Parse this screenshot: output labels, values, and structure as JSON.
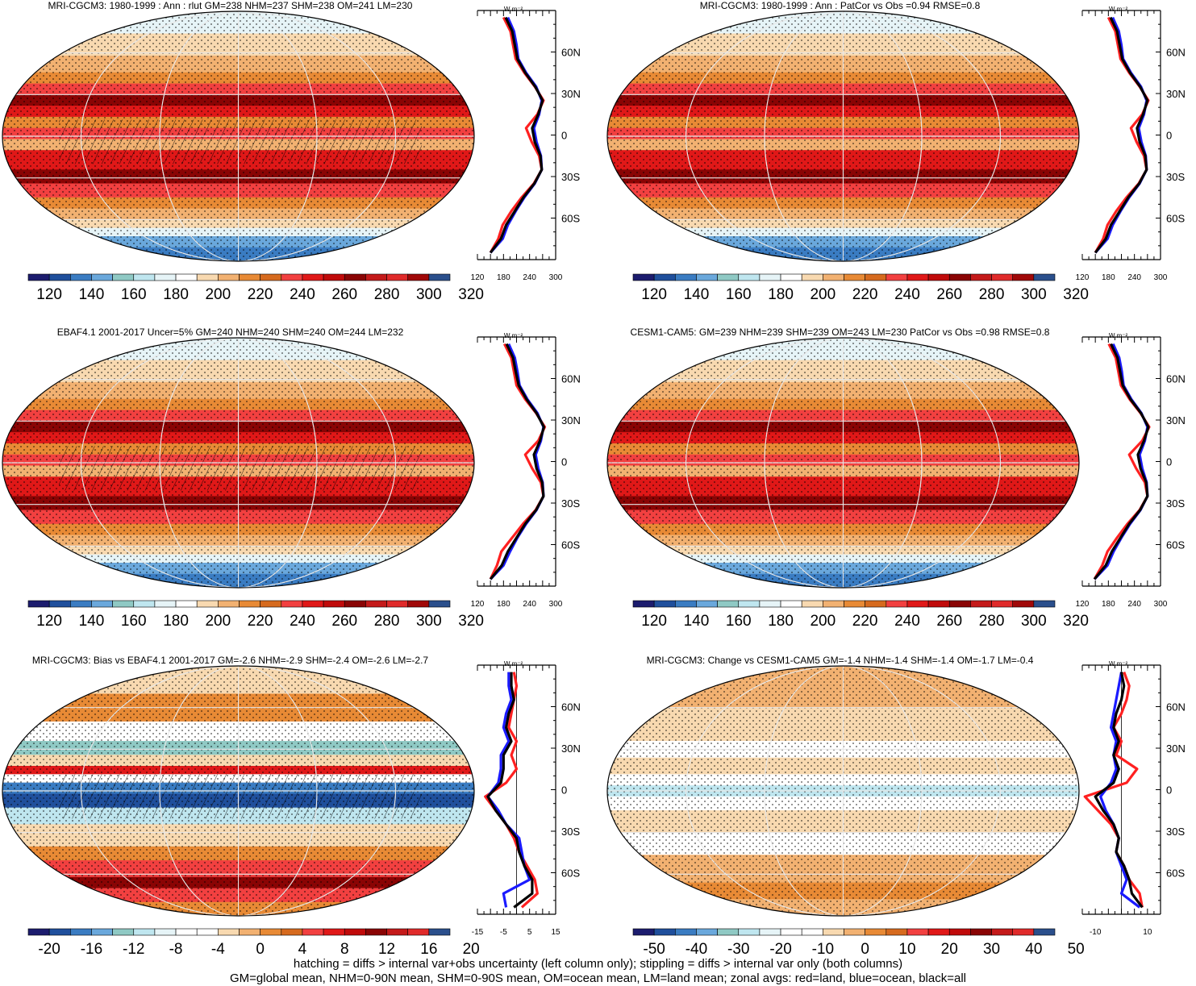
{
  "panels": [
    {
      "title": "MRI-CGCM3: 1980-1999 : Ann : rlut GM=238 NHM=237 SHM=238 OM=241 LM=230",
      "colorbar_labels": [
        "120",
        "140",
        "160",
        "180",
        "200",
        "220",
        "240",
        "260",
        "280",
        "300",
        "320"
      ],
      "profile_xlabels": [
        "120",
        "180",
        "240",
        "300"
      ],
      "lat_labels": [
        "60N",
        "30N",
        "0",
        "30S",
        "60S"
      ],
      "unit": "W m⁻²",
      "kind": "abs"
    },
    {
      "title": "MRI-CGCM3: 1980-1999 : Ann : PatCor vs Obs =0.94 RMSE=0.8",
      "colorbar_labels": [
        "120",
        "140",
        "160",
        "180",
        "200",
        "220",
        "240",
        "260",
        "280",
        "300",
        "320"
      ],
      "profile_xlabels": [
        "120",
        "180",
        "240",
        "300"
      ],
      "lat_labels": [
        "60N",
        "30N",
        "0",
        "30S",
        "60S"
      ],
      "unit": "W m⁻²",
      "kind": "abs"
    },
    {
      "title": "EBAF4.1 2001-2017 Uncer=5% GM=240 NHM=240 SHM=240 OM=244 LM=232",
      "colorbar_labels": [
        "120",
        "140",
        "160",
        "180",
        "200",
        "220",
        "240",
        "260",
        "280",
        "300",
        "320"
      ],
      "profile_xlabels": [
        "120",
        "180",
        "240",
        "300"
      ],
      "lat_labels": [
        "60N",
        "30N",
        "0",
        "30S",
        "60S"
      ],
      "unit": "W m⁻²",
      "kind": "abs"
    },
    {
      "title": "CESM1-CAM5: GM=239 NHM=239 SHM=239 OM=243 LM=230 PatCor vs Obs =0.98 RMSE=0.8",
      "colorbar_labels": [
        "120",
        "140",
        "160",
        "180",
        "200",
        "220",
        "240",
        "260",
        "280",
        "300",
        "320"
      ],
      "profile_xlabels": [
        "120",
        "180",
        "240",
        "300"
      ],
      "lat_labels": [
        "60N",
        "30N",
        "0",
        "30S",
        "60S"
      ],
      "unit": "W m⁻²",
      "kind": "abs"
    },
    {
      "title": "MRI-CGCM3: Bias vs EBAF4.1 2001-2017 GM=-2.6 NHM=-2.9 SHM=-2.4 OM=-2.6 LM=-2.7",
      "colorbar_labels": [
        "-20",
        "-16",
        "-12",
        "-8",
        "-4",
        "0",
        "4",
        "8",
        "12",
        "16",
        "20"
      ],
      "profile_xlabels": [
        "-15",
        "-5",
        "5",
        "15"
      ],
      "lat_labels": [
        "60N",
        "30N",
        "0",
        "30S",
        "60S"
      ],
      "unit": "W m⁻²",
      "kind": "bias"
    },
    {
      "title": "MRI-CGCM3: Change vs CESM1-CAM5 GM=-1.4 NHM=-1.4 SHM=-1.4 OM=-1.7 LM=-0.4",
      "colorbar_labels": [
        "-50",
        "-40",
        "-30",
        "-20",
        "-10",
        "0",
        "10",
        "20",
        "30",
        "40",
        "50"
      ],
      "profile_xlabels": [
        "-10",
        "10"
      ],
      "lat_labels": [
        "60N",
        "30N",
        "0",
        "30S",
        "60S"
      ],
      "unit": "W m⁻²",
      "kind": "change"
    }
  ],
  "footer": {
    "line1": "hatching = diffs > internal var+obs uncertainty (left column only); stippling = diffs > internal var only (both columns)",
    "line2": "GM=global mean, NHM=0-90N mean, SHM=0-90S mean, OM=ocean mean, LM=land mean; zonal avgs: red=land, blue=ocean, black=all"
  },
  "palette": [
    "#1c1c6e",
    "#1f4f9c",
    "#3a7cc2",
    "#6aa8dc",
    "#8fc9c4",
    "#bfe6ef",
    "#e6f4f7",
    "#ffffff",
    "#f8d9b0",
    "#f2b171",
    "#e88a35",
    "#d66a1e",
    "#f24040",
    "#e01818",
    "#c00a0a",
    "#8a0404",
    "#c41a1a",
    "#e02a2a",
    "#a00808",
    "#2a4f8c"
  ],
  "profile_colors": {
    "land": "#ff2020",
    "ocean": "#1a1aff",
    "all": "#000000"
  },
  "chart_data": [
    {
      "type": "line",
      "title": "MRI-CGCM3: 1980-1999 : Ann : rlut GM=238 NHM=237 SHM=238 OM=241 LM=230",
      "xlabel": "W m⁻²",
      "xlim": [
        120,
        300
      ],
      "ylim": [
        -90,
        90
      ],
      "y": [
        -85,
        -75,
        -65,
        -55,
        -45,
        -35,
        -25,
        -15,
        -5,
        5,
        15,
        25,
        35,
        45,
        55,
        65,
        75,
        85
      ],
      "series": [
        {
          "name": "red=land",
          "values": [
            150,
            168,
            178,
            198,
            222,
            250,
            268,
            262,
            245,
            232,
            258,
            272,
            252,
            228,
            208,
            202,
            196,
            180
          ]
        },
        {
          "name": "blue=ocean",
          "values": [
            150,
            178,
            190,
            208,
            228,
            252,
            268,
            266,
            256,
            250,
            262,
            268,
            255,
            232,
            214,
            210,
            204,
            190
          ]
        },
        {
          "name": "black=all",
          "values": [
            150,
            174,
            186,
            206,
            226,
            251,
            268,
            265,
            252,
            246,
            260,
            270,
            253,
            230,
            212,
            206,
            200,
            185
          ]
        }
      ]
    },
    {
      "type": "line",
      "title": "MRI-CGCM3: 1980-1999 : Ann : PatCor vs Obs =0.94 RMSE=0.8",
      "xlabel": "W m⁻²",
      "xlim": [
        120,
        300
      ],
      "ylim": [
        -90,
        90
      ],
      "y": [
        -85,
        -75,
        -65,
        -55,
        -45,
        -35,
        -25,
        -15,
        -5,
        5,
        15,
        25,
        35,
        45,
        55,
        65,
        75,
        85
      ],
      "series": [
        {
          "name": "red=land",
          "values": [
            150,
            168,
            178,
            198,
            222,
            250,
            268,
            262,
            245,
            232,
            258,
            272,
            252,
            228,
            208,
            202,
            196,
            180
          ]
        },
        {
          "name": "blue=ocean",
          "values": [
            150,
            178,
            190,
            208,
            228,
            252,
            268,
            266,
            256,
            250,
            262,
            268,
            255,
            232,
            214,
            210,
            204,
            190
          ]
        },
        {
          "name": "black=all",
          "values": [
            150,
            174,
            186,
            206,
            226,
            251,
            268,
            265,
            252,
            246,
            260,
            270,
            253,
            230,
            212,
            206,
            200,
            185
          ]
        }
      ]
    },
    {
      "type": "line",
      "title": "EBAF4.1 2001-2017 Uncer=5% GM=240 NHM=240 SHM=240 OM=244 LM=232",
      "xlabel": "W m⁻²",
      "xlim": [
        120,
        300
      ],
      "ylim": [
        -90,
        90
      ],
      "y": [
        -85,
        -75,
        -65,
        -55,
        -45,
        -35,
        -25,
        -15,
        -5,
        5,
        15,
        25,
        35,
        45,
        55,
        65,
        75,
        85
      ],
      "series": [
        {
          "name": "red=land",
          "values": [
            150,
            165,
            175,
            200,
            225,
            254,
            272,
            266,
            246,
            230,
            260,
            275,
            255,
            230,
            210,
            204,
            198,
            182
          ]
        },
        {
          "name": "blue=ocean",
          "values": [
            150,
            180,
            195,
            212,
            232,
            256,
            272,
            270,
            260,
            254,
            266,
            272,
            258,
            235,
            217,
            212,
            206,
            192
          ]
        },
        {
          "name": "black=all",
          "values": [
            150,
            176,
            190,
            210,
            230,
            255,
            272,
            269,
            256,
            250,
            264,
            273,
            256,
            233,
            215,
            208,
            202,
            187
          ]
        }
      ]
    },
    {
      "type": "line",
      "title": "CESM1-CAM5: GM=239 NHM=239 SHM=239 OM=243 LM=230 PatCor vs Obs =0.98 RMSE=0.8",
      "xlabel": "W m⁻²",
      "xlim": [
        120,
        300
      ],
      "ylim": [
        -90,
        90
      ],
      "y": [
        -85,
        -75,
        -65,
        -55,
        -45,
        -35,
        -25,
        -15,
        -5,
        5,
        15,
        25,
        35,
        45,
        55,
        65,
        75,
        85
      ],
      "series": [
        {
          "name": "red=land",
          "values": [
            148,
            166,
            178,
            200,
            224,
            252,
            270,
            264,
            244,
            228,
            258,
            274,
            254,
            229,
            209,
            203,
            197,
            181
          ]
        },
        {
          "name": "blue=ocean",
          "values": [
            148,
            178,
            192,
            210,
            230,
            254,
            270,
            268,
            258,
            252,
            264,
            270,
            256,
            233,
            215,
            211,
            205,
            191
          ]
        },
        {
          "name": "black=all",
          "values": [
            148,
            174,
            188,
            208,
            228,
            253,
            270,
            267,
            254,
            248,
            262,
            272,
            255,
            231,
            213,
            207,
            201,
            186
          ]
        }
      ]
    },
    {
      "type": "line",
      "title": "MRI-CGCM3: Bias vs EBAF4.1 2001-2017 GM=-2.6 NHM=-2.9 SHM=-2.4 OM=-2.6 LM=-2.7",
      "xlabel": "W m⁻²",
      "xlim": [
        -15,
        15
      ],
      "ylim": [
        -90,
        90
      ],
      "y": [
        -85,
        -75,
        -65,
        -55,
        -45,
        -35,
        -25,
        -15,
        -5,
        5,
        15,
        25,
        35,
        45,
        55,
        65,
        75,
        85
      ],
      "series": [
        {
          "name": "red=land",
          "values": [
            2,
            8,
            7,
            4,
            1,
            -1,
            -4,
            -8,
            -12,
            -4,
            0,
            -2,
            0,
            -3,
            -2,
            -1,
            0,
            -1
          ]
        },
        {
          "name": "blue=ocean",
          "values": [
            -4,
            -5,
            5,
            3,
            2,
            1,
            -4,
            -7,
            -11,
            -7,
            -6,
            -6,
            -3,
            -5,
            -4,
            -2,
            -3,
            -3
          ]
        },
        {
          "name": "black=all",
          "values": [
            -1,
            6,
            6,
            3,
            1,
            0,
            -4,
            -8,
            -11,
            -6,
            -5,
            -5,
            -2,
            -4,
            -3,
            -1,
            -2,
            -2
          ]
        }
      ]
    },
    {
      "type": "line",
      "title": "MRI-CGCM3: Change vs CESM1-CAM5 GM=-1.4 NHM=-1.4 SHM=-1.4 OM=-1.7 LM=-0.4",
      "xlabel": "W m⁻²",
      "xlim": [
        -15,
        15
      ],
      "ylim": [
        -90,
        90
      ],
      "y": [
        -85,
        -75,
        -65,
        -55,
        -45,
        -35,
        -25,
        -15,
        -5,
        5,
        15,
        25,
        35,
        45,
        55,
        65,
        75,
        85
      ],
      "series": [
        {
          "name": "red=land",
          "values": [
            8,
            7,
            3,
            1,
            -2,
            -1,
            -4,
            -9,
            -14,
            2,
            6,
            -2,
            0,
            -3,
            0,
            2,
            3,
            1
          ]
        },
        {
          "name": "blue=ocean",
          "values": [
            7,
            0,
            2,
            0,
            -2,
            -1,
            -3,
            -6,
            -8,
            -4,
            -2,
            -3,
            -2,
            -4,
            -3,
            -2,
            -1,
            0
          ]
        },
        {
          "name": "black=all",
          "values": [
            8,
            4,
            3,
            1,
            -2,
            -1,
            -3,
            -7,
            -10,
            -3,
            -1,
            -3,
            -1,
            -3,
            -2,
            0,
            1,
            0
          ]
        }
      ]
    }
  ]
}
